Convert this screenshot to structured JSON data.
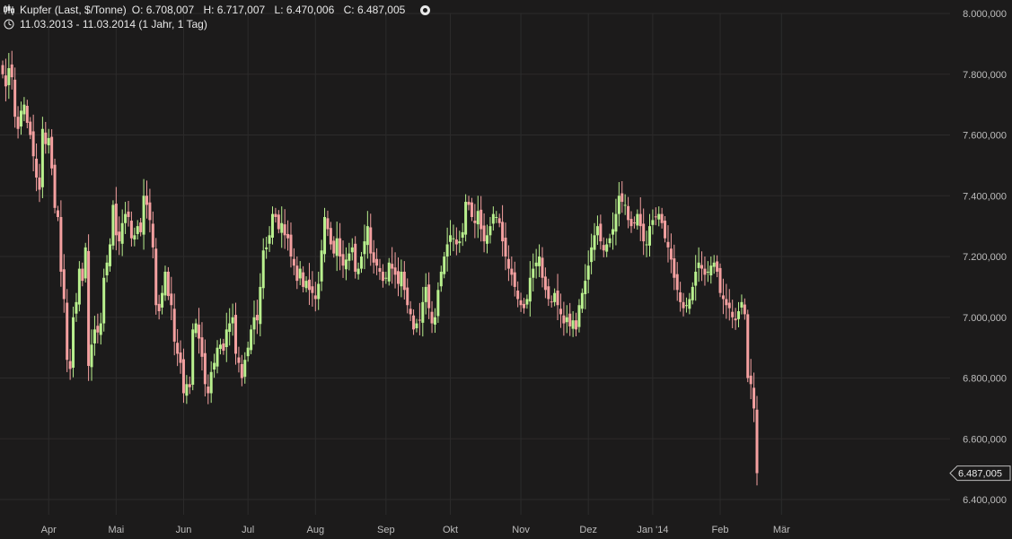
{
  "header": {
    "instrument": "Kupfer (Last, $/Tonne)",
    "open": "O: 6.708,007",
    "high": "H: 6.717,007",
    "low": "L: 6.470,006",
    "close": "C: 6.487,005",
    "range": "11.03.2013 - 11.03.2014 (1 Jahr, 1 Tag)",
    "chart_icon": "candlestick-icon",
    "clock_icon": "clock-icon",
    "settings_icon": "settings-circle-icon"
  },
  "colors": {
    "background": "#1c1b1b",
    "up": "#b9f08e",
    "down": "#f4a0a0",
    "grid": "#2c2b2b",
    "text": "#bdbdbd"
  },
  "chart_data": {
    "type": "candlestick",
    "title": "Kupfer (Last, $/Tonne)",
    "x_range": [
      "11.03.2013",
      "11.03.2014"
    ],
    "ylim": [
      6350000,
      8000000
    ],
    "y_ticks": [
      6400000,
      6600000,
      6800000,
      7000000,
      7200000,
      7400000,
      7600000,
      7800000,
      8000000
    ],
    "y_tick_labels": [
      "6.400,000",
      "6.600,000",
      "6.800,000",
      "7.000,000",
      "7.200,000",
      "7.400,000",
      "7.600,000",
      "7.800,000",
      "8.000,000"
    ],
    "x_tick_labels": [
      "Apr",
      "Mai",
      "Jun",
      "Jul",
      "Aug",
      "Sep",
      "Okt",
      "Nov",
      "Dez",
      "Jan '14",
      "Feb",
      "Mär"
    ],
    "x_tick_index": [
      15,
      37,
      59,
      80,
      102,
      125,
      146,
      169,
      191,
      212,
      234,
      254
    ],
    "last_value": 6487005,
    "last_label": "6.487,005",
    "grid": true,
    "legend": "none",
    "closes": [
      7800000,
      7760000,
      7820000,
      7790000,
      7660000,
      7620000,
      7680000,
      7700000,
      7640000,
      7600000,
      7530000,
      7460000,
      7420000,
      7620000,
      7570000,
      7590000,
      7490000,
      7360000,
      7330000,
      7150000,
      7060000,
      6860000,
      6830000,
      7000000,
      7050000,
      7160000,
      7120000,
      7230000,
      6840000,
      6910000,
      6960000,
      6950000,
      6980000,
      7130000,
      7180000,
      7240000,
      7370000,
      7270000,
      7250000,
      7310000,
      7340000,
      7330000,
      7260000,
      7270000,
      7300000,
      7280000,
      7400000,
      7370000,
      7320000,
      7230000,
      7040000,
      7020000,
      7080000,
      7150000,
      7070000,
      7040000,
      6920000,
      6880000,
      6850000,
      6750000,
      6780000,
      6770000,
      6960000,
      6980000,
      6930000,
      6870000,
      6780000,
      6750000,
      6820000,
      6850000,
      6900000,
      6910000,
      6890000,
      6960000,
      6980000,
      7000000,
      6880000,
      6850000,
      6800000,
      6860000,
      6900000,
      6960000,
      7000000,
      6990000,
      7100000,
      7220000,
      7230000,
      7270000,
      7340000,
      7330000,
      7290000,
      7310000,
      7270000,
      7260000,
      7200000,
      7170000,
      7120000,
      7160000,
      7100000,
      7120000,
      7090000,
      7080000,
      7060000,
      7110000,
      7220000,
      7330000,
      7290000,
      7240000,
      7210000,
      7260000,
      7200000,
      7170000,
      7190000,
      7210000,
      7230000,
      7150000,
      7160000,
      7200000,
      7250000,
      7300000,
      7210000,
      7180000,
      7170000,
      7150000,
      7120000,
      7130000,
      7180000,
      7160000,
      7140000,
      7110000,
      7150000,
      7090000,
      7040000,
      7010000,
      6960000,
      6980000,
      6990000,
      7050000,
      7100000,
      7030000,
      6980000,
      7000000,
      7090000,
      7150000,
      7200000,
      7240000,
      7270000,
      7260000,
      7240000,
      7250000,
      7280000,
      7380000,
      7370000,
      7330000,
      7310000,
      7350000,
      7290000,
      7250000,
      7270000,
      7300000,
      7340000,
      7330000,
      7310000,
      7250000,
      7200000,
      7160000,
      7140000,
      7100000,
      7060000,
      7040000,
      7030000,
      7060000,
      7130000,
      7160000,
      7180000,
      7200000,
      7130000,
      7090000,
      7060000,
      7050000,
      7080000,
      7040000,
      7010000,
      6980000,
      7000000,
      6970000,
      6990000,
      6960000,
      7040000,
      7080000,
      7120000,
      7170000,
      7230000,
      7270000,
      7300000,
      7250000,
      7220000,
      7240000,
      7260000,
      7290000,
      7340000,
      7400000,
      7380000,
      7370000,
      7320000,
      7300000,
      7310000,
      7340000,
      7300000,
      7250000,
      7240000,
      7300000,
      7320000,
      7330000,
      7340000,
      7310000,
      7260000,
      7230000,
      7190000,
      7130000,
      7090000,
      7050000,
      7030000,
      7040000,
      7060000,
      7100000,
      7150000,
      7180000,
      7160000,
      7140000,
      7150000,
      7170000,
      7180000,
      7150000,
      7080000,
      7060000,
      7040000,
      7030000,
      7000000,
      6990000,
      7020000,
      7050000,
      7010000,
      6800000,
      6780000,
      6700000,
      6487005
    ]
  }
}
